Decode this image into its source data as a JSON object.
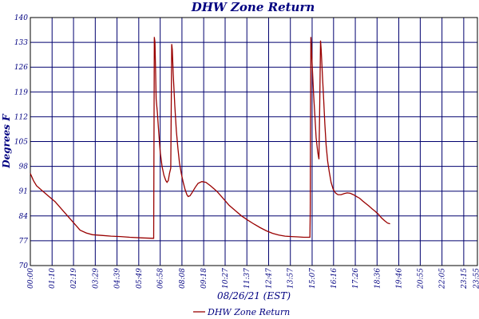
{
  "chart_data": {
    "type": "line",
    "title": "DHW Zone Return",
    "ylabel": "Degrees F",
    "xlabel": "08/26/21 (EST)",
    "ylim": [
      70,
      140
    ],
    "yticks": [
      70,
      77,
      84,
      91,
      98,
      105,
      112,
      119,
      126,
      133,
      140
    ],
    "ytick_labels": [
      "70",
      "77",
      "84",
      "91",
      "98",
      "105",
      "112",
      "119",
      "126",
      "133",
      "140"
    ],
    "xlim_minutes": [
      0,
      1439
    ],
    "xtick_labels": [
      "00:00",
      "01:10",
      "02:19",
      "03:29",
      "04:39",
      "05:49",
      "06:58",
      "08:08",
      "09:18",
      "10:27",
      "11:37",
      "12:47",
      "13:57",
      "15:07",
      "16:16",
      "17:26",
      "18:36",
      "19:46",
      "20:55",
      "22:05",
      "23:15",
      "23:55"
    ],
    "xtick_minutes": [
      0,
      70,
      139,
      209,
      279,
      349,
      418,
      488,
      558,
      627,
      697,
      767,
      837,
      907,
      976,
      1046,
      1116,
      1186,
      1255,
      1325,
      1395,
      1435
    ],
    "grid": true,
    "legend": "bottom",
    "colors": {
      "line": "#990000",
      "grid": "#00006e",
      "text": "#000080",
      "frame": "#000000"
    },
    "series": [
      {
        "name": "DHW Zone Return",
        "points": [
          [
            0,
            96
          ],
          [
            10,
            94
          ],
          [
            20,
            92.5
          ],
          [
            40,
            91
          ],
          [
            60,
            89.5
          ],
          [
            80,
            88
          ],
          [
            100,
            86
          ],
          [
            120,
            84
          ],
          [
            140,
            82
          ],
          [
            160,
            80
          ],
          [
            180,
            79.2
          ],
          [
            200,
            78.7
          ],
          [
            230,
            78.5
          ],
          [
            260,
            78.3
          ],
          [
            290,
            78.2
          ],
          [
            320,
            78
          ],
          [
            360,
            77.8
          ],
          [
            395,
            77.7
          ],
          [
            397,
            77.7
          ],
          [
            399,
            134.5
          ],
          [
            401,
            133
          ],
          [
            403,
            126
          ],
          [
            405,
            117
          ],
          [
            409,
            113
          ],
          [
            413,
            108
          ],
          [
            418,
            102
          ],
          [
            424,
            98
          ],
          [
            430,
            95.5
          ],
          [
            436,
            94
          ],
          [
            440,
            93.5
          ],
          [
            444,
            94
          ],
          [
            448,
            96
          ],
          [
            452,
            97.5
          ],
          [
            455,
            132.5
          ],
          [
            457,
            131
          ],
          [
            460,
            124
          ],
          [
            465,
            115
          ],
          [
            470,
            108
          ],
          [
            475,
            103
          ],
          [
            480,
            99
          ],
          [
            486,
            96
          ],
          [
            492,
            93.5
          ],
          [
            498,
            91.5
          ],
          [
            504,
            90
          ],
          [
            508,
            89.5
          ],
          [
            514,
            89.7
          ],
          [
            520,
            90.5
          ],
          [
            530,
            92
          ],
          [
            540,
            93.2
          ],
          [
            552,
            93.7
          ],
          [
            565,
            93.5
          ],
          [
            580,
            92.5
          ],
          [
            600,
            91
          ],
          [
            620,
            89
          ],
          [
            640,
            87
          ],
          [
            660,
            85.5
          ],
          [
            680,
            84
          ],
          [
            700,
            82.8
          ],
          [
            720,
            81.7
          ],
          [
            740,
            80.7
          ],
          [
            760,
            79.8
          ],
          [
            780,
            79.1
          ],
          [
            800,
            78.6
          ],
          [
            820,
            78.3
          ],
          [
            840,
            78.2
          ],
          [
            860,
            78.1
          ],
          [
            880,
            78
          ],
          [
            898,
            78
          ],
          [
            900,
            78
          ],
          [
            901,
            85
          ],
          [
            903,
            134.5
          ],
          [
            905,
            131
          ],
          [
            908,
            125
          ],
          [
            912,
            118
          ],
          [
            916,
            112
          ],
          [
            920,
            106
          ],
          [
            925,
            102
          ],
          [
            929,
            100
          ],
          [
            931,
            112
          ],
          [
            934,
            133.5
          ],
          [
            936,
            131
          ],
          [
            940,
            124
          ],
          [
            944,
            117
          ],
          [
            948,
            110
          ],
          [
            952,
            104
          ],
          [
            957,
            99.5
          ],
          [
            962,
            96.5
          ],
          [
            968,
            93.5
          ],
          [
            975,
            91.5
          ],
          [
            982,
            90.5
          ],
          [
            990,
            90
          ],
          [
            1000,
            90
          ],
          [
            1010,
            90.3
          ],
          [
            1020,
            90.5
          ],
          [
            1030,
            90.4
          ],
          [
            1040,
            90
          ],
          [
            1050,
            89.5
          ],
          [
            1060,
            89
          ],
          [
            1070,
            88.2
          ],
          [
            1080,
            87.5
          ],
          [
            1090,
            86.8
          ],
          [
            1100,
            86
          ],
          [
            1110,
            85.3
          ],
          [
            1120,
            84.5
          ],
          [
            1130,
            83.5
          ],
          [
            1140,
            82.7
          ],
          [
            1150,
            82
          ],
          [
            1158,
            81.8
          ]
        ]
      }
    ]
  }
}
